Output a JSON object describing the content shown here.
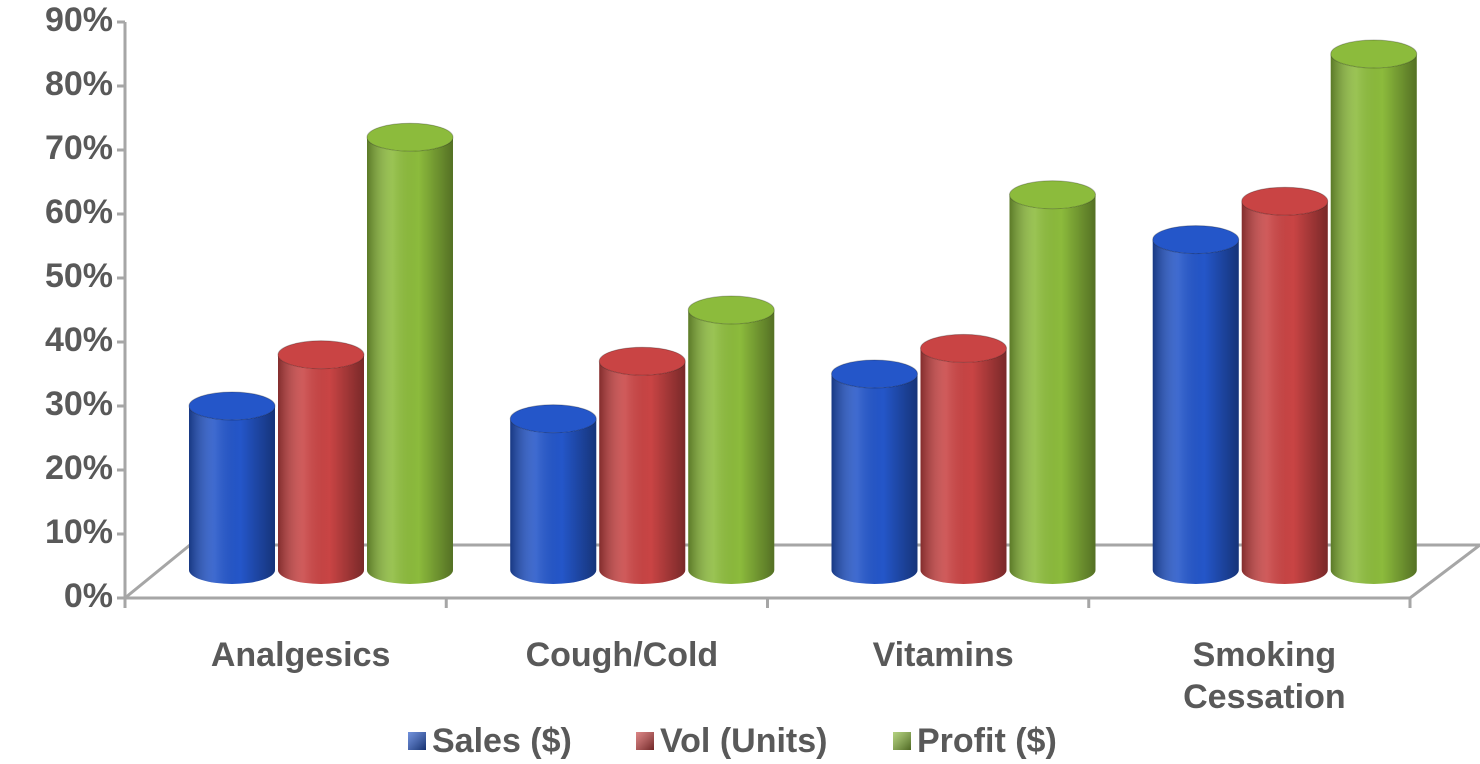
{
  "chart_data": {
    "type": "bar",
    "three_d": true,
    "categories": [
      "Analgesics",
      "Cough/Cold",
      "Vitamins",
      "Smoking Cessation"
    ],
    "series": [
      {
        "name": "Sales ($)",
        "color": "#2456c9",
        "values": [
          30,
          28,
          35,
          56
        ]
      },
      {
        "name": "Vol (Units)",
        "color": "#c94444",
        "values": [
          38,
          37,
          39,
          62
        ]
      },
      {
        "name": "Profit ($)",
        "color": "#8cbb3c",
        "values": [
          72,
          45,
          63,
          85
        ]
      }
    ],
    "ylim": [
      0,
      90
    ],
    "yticks": [
      {
        "value": 0,
        "label": "0%"
      },
      {
        "value": 10,
        "label": "10%"
      },
      {
        "value": 20,
        "label": "20%"
      },
      {
        "value": 30,
        "label": "30%"
      },
      {
        "value": 40,
        "label": "40%"
      },
      {
        "value": 50,
        "label": "50%"
      },
      {
        "value": 60,
        "label": "60%"
      },
      {
        "value": 70,
        "label": "70%"
      },
      {
        "value": 80,
        "label": "80%"
      },
      {
        "value": 90,
        "label": "90%"
      }
    ],
    "legend": "bottom"
  }
}
